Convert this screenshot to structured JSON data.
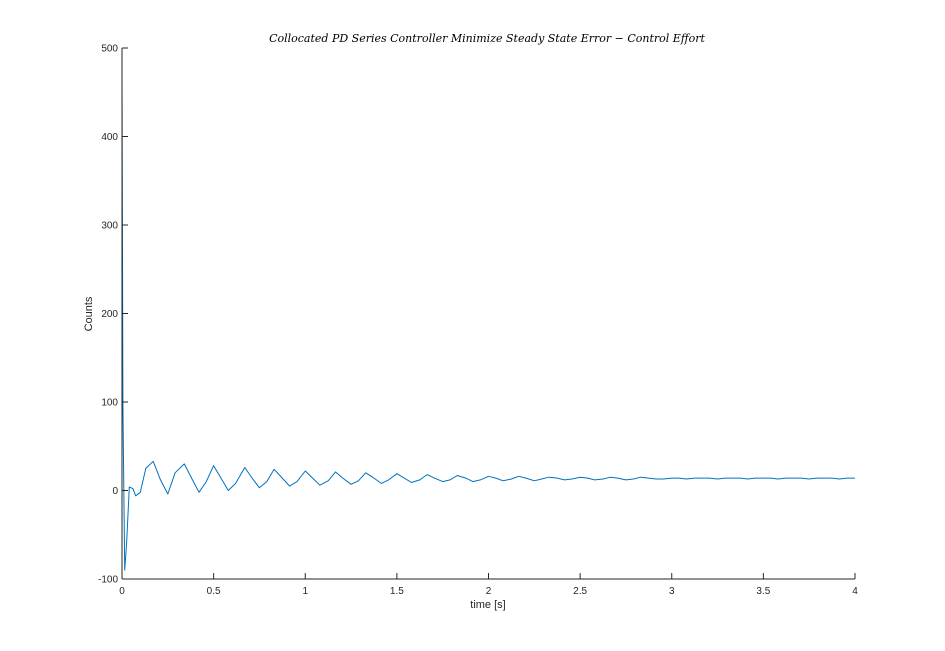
{
  "chart_data": {
    "type": "line",
    "title": "Collocated PD Series Controller Minimize Steady State Error − Control Effort",
    "xlabel": "time [s]",
    "ylabel": "Counts",
    "xlim": [
      0,
      4
    ],
    "ylim": [
      -100,
      500
    ],
    "xticks": [
      0,
      0.5,
      1,
      1.5,
      2,
      2.5,
      3,
      3.5,
      4
    ],
    "xtick_labels": [
      "0",
      "0.5",
      "1",
      "1.5",
      "2",
      "2.5",
      "3",
      "3.5",
      "4"
    ],
    "yticks": [
      -100,
      0,
      100,
      200,
      300,
      400,
      500
    ],
    "ytick_labels": [
      "-100",
      "0",
      "100",
      "200",
      "300",
      "400",
      "500"
    ],
    "grid": false,
    "line_color": "#0072BD",
    "series": [
      {
        "x": [
          0,
          0.005,
          0.015,
          0.025,
          0.04,
          0.06,
          0.075,
          0.1,
          0.13,
          0.17,
          0.21,
          0.25,
          0.29,
          0.34,
          0.38,
          0.42,
          0.46,
          0.5,
          0.54,
          0.58,
          0.62,
          0.67,
          0.71,
          0.75,
          0.79,
          0.83,
          0.875,
          0.915,
          0.955,
          1.0,
          1.04,
          1.08,
          1.125,
          1.165,
          1.205,
          1.25,
          1.29,
          1.33,
          1.375,
          1.415,
          1.455,
          1.5,
          1.54,
          1.58,
          1.625,
          1.665,
          1.705,
          1.75,
          1.79,
          1.83,
          1.875,
          1.915,
          1.955,
          2.0,
          2.04,
          2.08,
          2.125,
          2.165,
          2.205,
          2.25,
          2.29,
          2.33,
          2.375,
          2.415,
          2.455,
          2.5,
          2.54,
          2.58,
          2.625,
          2.665,
          2.705,
          2.75,
          2.79,
          2.83,
          2.875,
          2.915,
          2.955,
          3.0,
          3.04,
          3.08,
          3.125,
          3.165,
          3.205,
          3.25,
          3.29,
          3.33,
          3.375,
          3.415,
          3.455,
          3.5,
          3.54,
          3.58,
          3.625,
          3.665,
          3.705,
          3.75,
          3.79,
          3.83,
          3.875,
          3.915,
          3.955,
          4.0
        ],
        "y": [
          470,
          100,
          -90,
          -60,
          4,
          2,
          -6,
          -2,
          25,
          33,
          12,
          -4,
          20,
          30,
          14,
          -2,
          10,
          28,
          14,
          0,
          8,
          26,
          14,
          3,
          10,
          24,
          14,
          5,
          10,
          22,
          14,
          6,
          11,
          21,
          14,
          7,
          11,
          20,
          14,
          8,
          12,
          19,
          14,
          9,
          12,
          18,
          14,
          10,
          12,
          17,
          14,
          10,
          12,
          16,
          14,
          11,
          13,
          16,
          14,
          11,
          13,
          15,
          14,
          12,
          13,
          15,
          14,
          12,
          13,
          15,
          14,
          12,
          13,
          15,
          14,
          13,
          13,
          14,
          14,
          13,
          14,
          14,
          14,
          13,
          14,
          14,
          14,
          13,
          14,
          14,
          14,
          13,
          14,
          14,
          14,
          13,
          14,
          14,
          14,
          13,
          14,
          14
        ]
      }
    ]
  }
}
